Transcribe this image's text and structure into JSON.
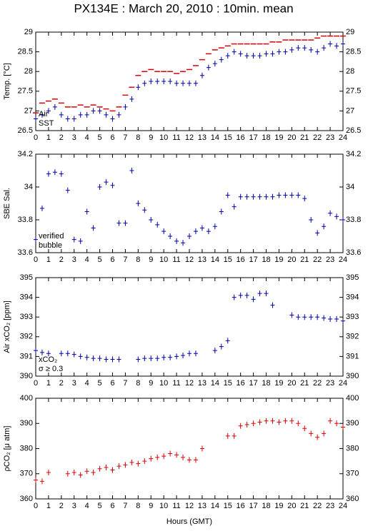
{
  "title": "PX134E : March 20, 2010 : 10min. mean",
  "x_label": "Hours (GMT)",
  "chart_data": [
    {
      "type": "scatter",
      "y_label": "Temp. [°C]",
      "x": [
        0,
        0.5,
        1,
        1.5,
        2,
        2.5,
        3,
        3.5,
        4,
        4.5,
        5,
        5.5,
        6,
        6.5,
        7,
        7.5,
        8,
        8.5,
        9,
        9.5,
        10,
        10.5,
        11,
        11.5,
        12,
        12.5,
        13,
        13.5,
        14,
        14.5,
        15,
        15.5,
        16,
        16.5,
        17,
        17.5,
        18,
        18.5,
        19,
        19.5,
        20,
        20.5,
        21,
        21.5,
        22,
        22.5,
        23,
        23.5,
        24
      ],
      "series": [
        {
          "name": "Air",
          "color": "#dd0000",
          "marker": "dash",
          "values": [
            26.95,
            27.2,
            27.25,
            27.3,
            27.2,
            27.1,
            27.1,
            27.15,
            27.1,
            27.15,
            27.1,
            27.05,
            27.0,
            27.1,
            27.4,
            27.6,
            27.9,
            28.0,
            28.05,
            28.0,
            28.0,
            28.0,
            27.95,
            28.0,
            28.05,
            28.15,
            28.3,
            28.45,
            28.55,
            28.6,
            28.65,
            28.7,
            28.7,
            28.7,
            28.7,
            28.7,
            28.7,
            28.75,
            28.75,
            28.8,
            28.8,
            28.8,
            28.8,
            28.8,
            28.85,
            28.9,
            28.9,
            28.9,
            28.9
          ]
        },
        {
          "name": "SST",
          "color": "#0000aa",
          "marker": "plus",
          "values": [
            26.8,
            26.9,
            27.0,
            27.1,
            26.9,
            26.8,
            26.8,
            26.9,
            26.9,
            27.0,
            27.0,
            26.9,
            26.8,
            26.9,
            27.1,
            27.3,
            27.6,
            27.7,
            27.75,
            27.75,
            27.75,
            27.75,
            27.7,
            27.7,
            27.7,
            27.7,
            27.9,
            28.1,
            28.2,
            28.3,
            28.4,
            28.5,
            28.45,
            28.4,
            28.4,
            28.4,
            28.45,
            28.45,
            28.5,
            28.5,
            28.55,
            28.6,
            28.6,
            28.55,
            28.5,
            28.6,
            28.7,
            28.65,
            28.7
          ]
        }
      ],
      "xlim": [
        0,
        24
      ],
      "xticks": [
        0,
        1,
        2,
        3,
        4,
        5,
        6,
        7,
        8,
        9,
        10,
        11,
        12,
        13,
        14,
        15,
        16,
        17,
        18,
        19,
        20,
        21,
        22,
        23,
        24
      ],
      "ylim": [
        26.5,
        29
      ],
      "yticks": [
        26.5,
        27,
        27.5,
        28,
        28.5,
        29
      ]
    },
    {
      "type": "scatter",
      "y_label": "SBE Sal.",
      "x": [
        0,
        0.5,
        1,
        1.5,
        2,
        2.5,
        3,
        3.5,
        4,
        4.5,
        5,
        5.5,
        6,
        6.5,
        7,
        7.5,
        8,
        8.5,
        9,
        9.5,
        10,
        10.5,
        11,
        11.5,
        12,
        12.5,
        13,
        13.5,
        14,
        14.5,
        15,
        15.5,
        16,
        16.5,
        17,
        17.5,
        18,
        18.5,
        19,
        19.5,
        20,
        20.5,
        21,
        21.5,
        22,
        22.5,
        23,
        23.5,
        24
      ],
      "series": [
        {
          "name": "verified",
          "color": "#0000aa",
          "marker": "plus",
          "values": [
            33.68,
            33.87,
            34.08,
            34.09,
            34.08,
            33.98,
            33.68,
            33.67,
            33.85,
            33.75,
            34.0,
            34.03,
            34.01,
            33.78,
            33.78,
            34.1,
            33.9,
            33.86,
            33.8,
            33.77,
            33.73,
            33.7,
            33.67,
            33.66,
            33.7,
            33.73,
            33.75,
            33.73,
            33.76,
            33.85,
            33.95,
            33.88,
            33.94,
            33.94,
            33.94,
            33.94,
            33.94,
            33.94,
            33.95,
            33.95,
            33.95,
            33.95,
            33.93,
            33.8,
            33.72,
            33.76,
            33.84,
            33.82,
            33.8
          ]
        }
      ],
      "annotations": [
        {
          "text": "bubble",
          "color": "#cc00cc"
        }
      ],
      "xlim": [
        0,
        24
      ],
      "xticks": [
        0,
        1,
        2,
        3,
        4,
        5,
        6,
        7,
        8,
        9,
        10,
        11,
        12,
        13,
        14,
        15,
        16,
        17,
        18,
        19,
        20,
        21,
        22,
        23,
        24
      ],
      "ylim": [
        33.6,
        34.2
      ],
      "yticks": [
        33.6,
        33.8,
        34,
        34.2
      ]
    },
    {
      "type": "scatter",
      "y_label": "Air xCO₂ [ppm]",
      "x": [
        0,
        0.5,
        1,
        1.5,
        2,
        2.5,
        3,
        3.5,
        4,
        4.5,
        5,
        5.5,
        6,
        6.5,
        7,
        7.5,
        8,
        8.5,
        9,
        9.5,
        10,
        10.5,
        11,
        11.5,
        12,
        12.5,
        13,
        13.5,
        14,
        14.5,
        15,
        15.5,
        16,
        16.5,
        17,
        17.5,
        18,
        18.5,
        19,
        19.5,
        20,
        20.5,
        21,
        21.5,
        22,
        22.5,
        23,
        23.5,
        24
      ],
      "series": [
        {
          "name": "xCO₂",
          "color": "#0000aa",
          "marker": "plus",
          "values": [
            391.3,
            391.2,
            391.15,
            null,
            391.15,
            391.15,
            391.1,
            391.0,
            390.95,
            390.9,
            390.9,
            390.85,
            390.85,
            390.85,
            null,
            null,
            390.85,
            390.9,
            390.9,
            390.9,
            390.95,
            390.95,
            391.0,
            391.05,
            391.15,
            391.15,
            null,
            null,
            391.3,
            391.5,
            391.8,
            394.0,
            394.1,
            394.1,
            393.9,
            394.2,
            394.2,
            393.6,
            null,
            null,
            393.1,
            393.0,
            393.0,
            393.0,
            393.0,
            392.95,
            392.9,
            392.9,
            392.8
          ]
        }
      ],
      "annotations": [
        {
          "text": "σ ≥ 0.3",
          "color": "#cc00cc"
        }
      ],
      "xlim": [
        0,
        24
      ],
      "xticks": [
        0,
        1,
        2,
        3,
        4,
        5,
        6,
        7,
        8,
        9,
        10,
        11,
        12,
        13,
        14,
        15,
        16,
        17,
        18,
        19,
        20,
        21,
        22,
        23,
        24
      ],
      "ylim": [
        390,
        395
      ],
      "yticks": [
        390,
        391,
        392,
        393,
        394,
        395
      ]
    },
    {
      "type": "scatter",
      "y_label": "ρCO₂ [μ atm]",
      "x": [
        0,
        0.5,
        1,
        1.5,
        2,
        2.5,
        3,
        3.5,
        4,
        4.5,
        5,
        5.5,
        6,
        6.5,
        7,
        7.5,
        8,
        8.5,
        9,
        9.5,
        10,
        10.5,
        11,
        11.5,
        12,
        12.5,
        13,
        13.5,
        14,
        14.5,
        15,
        15.5,
        16,
        16.5,
        17,
        17.5,
        18,
        18.5,
        19,
        19.5,
        20,
        20.5,
        21,
        21.5,
        22,
        22.5,
        23,
        23.5,
        24
      ],
      "series": [
        {
          "name": "ρCO₂",
          "color": "#dd0000",
          "marker": "plus",
          "values": [
            367.5,
            367,
            370.5,
            null,
            null,
            370,
            370.5,
            369.5,
            371,
            370.5,
            372,
            372.5,
            371.5,
            373,
            373.5,
            374.5,
            374,
            375,
            376,
            376.5,
            377,
            378,
            377.5,
            376.5,
            375.5,
            375.5,
            380,
            null,
            null,
            null,
            385,
            385,
            389,
            389.5,
            390,
            390.5,
            391,
            391,
            390.5,
            391,
            391,
            390,
            388,
            386,
            384.5,
            386,
            391,
            390,
            388.5
          ]
        }
      ],
      "xlim": [
        0,
        24
      ],
      "xticks": [
        0,
        1,
        2,
        3,
        4,
        5,
        6,
        7,
        8,
        9,
        10,
        11,
        12,
        13,
        14,
        15,
        16,
        17,
        18,
        19,
        20,
        21,
        22,
        23,
        24
      ],
      "ylim": [
        360,
        400
      ],
      "yticks": [
        360,
        370,
        380,
        390,
        400
      ]
    }
  ]
}
